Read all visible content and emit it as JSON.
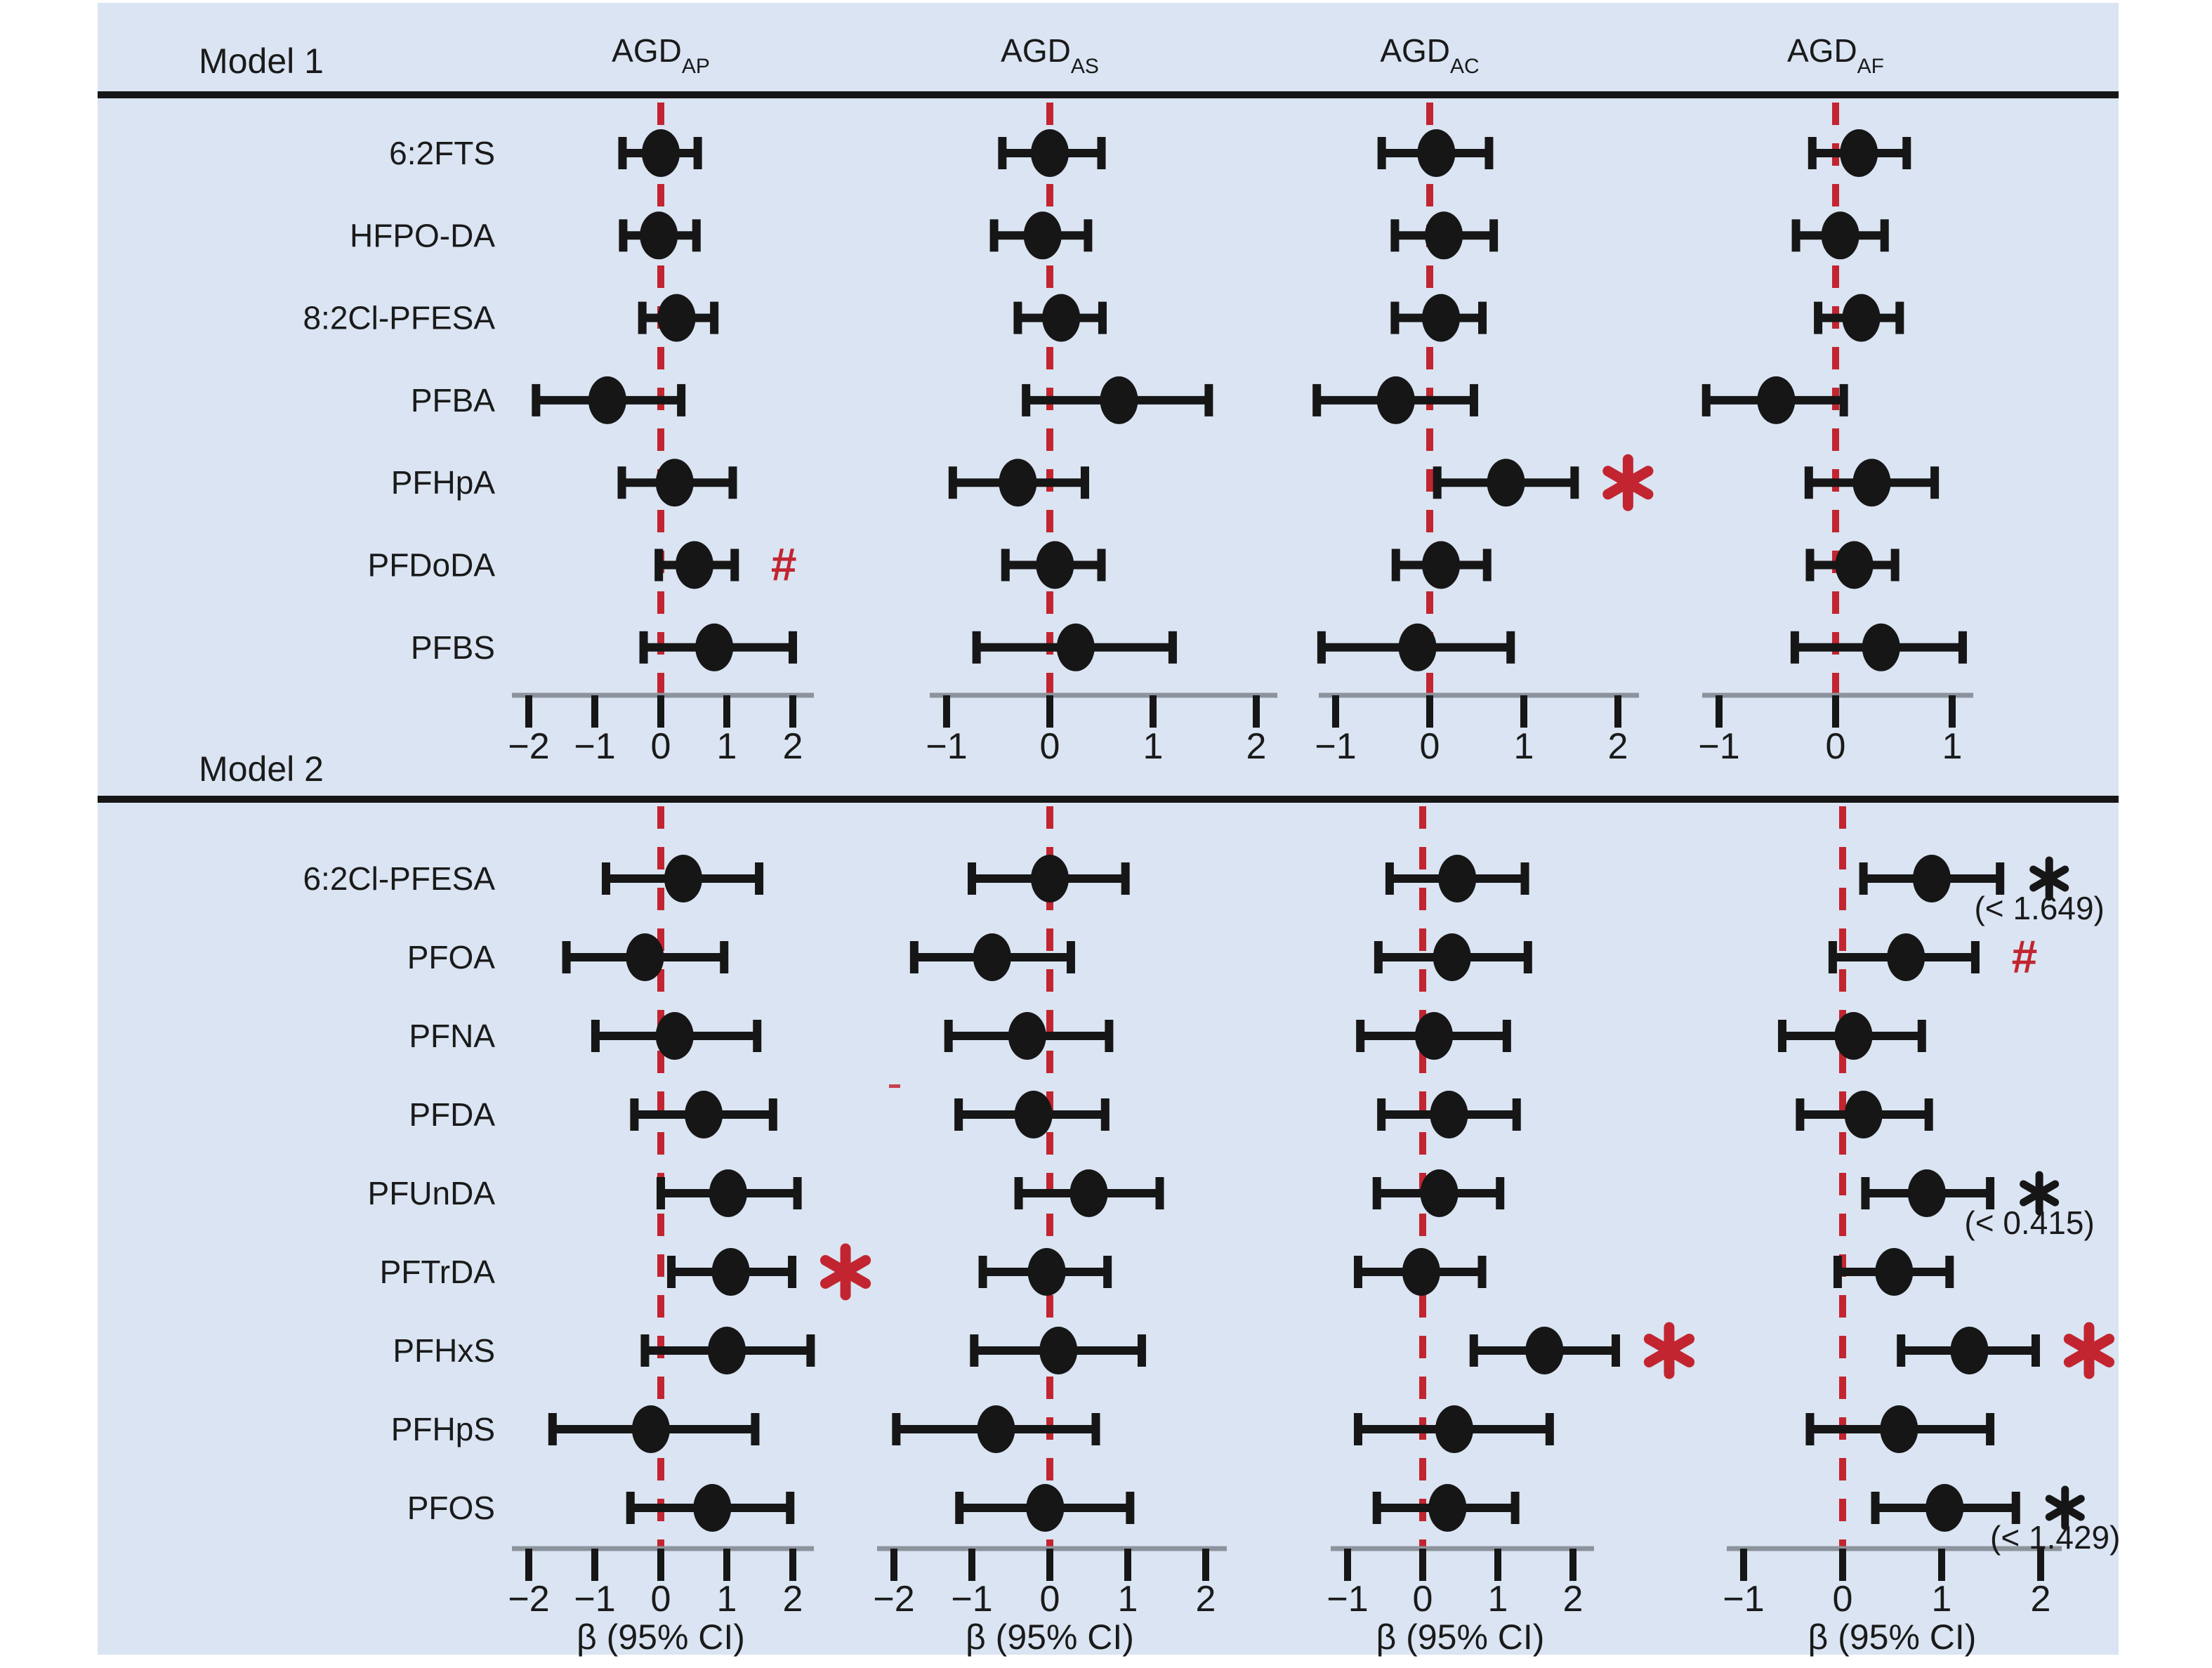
{
  "figure": {
    "panel_bg": "#dae4f2",
    "page_bg": "#ffffff",
    "black": "#161616",
    "text_color": "#1a1a1a",
    "accent_red": "#c22530",
    "axis_gray": "#8c939c"
  },
  "chart_data": {
    "type": "forest",
    "title": "",
    "xlabel": "β (95% CI)",
    "reference_line": 0,
    "grid": "off",
    "legend": "none",
    "columns": [
      {
        "id": "AGD_AP",
        "label": "AGD",
        "sub": "AP"
      },
      {
        "id": "AGD_AS",
        "label": "AGD",
        "sub": "AS"
      },
      {
        "id": "AGD_AC",
        "label": "AGD",
        "sub": "AC"
      },
      {
        "id": "AGD_AF",
        "label": "AGD",
        "sub": "AF"
      }
    ],
    "models": [
      {
        "label": "Model 1",
        "show_xlabel": false,
        "axes": [
          [
            -2,
            -1,
            0,
            1,
            2
          ],
          [
            -1,
            0,
            1,
            2
          ],
          [
            -1,
            0,
            1,
            2
          ],
          [
            -1,
            0,
            1
          ]
        ],
        "rows": [
          {
            "name": "6:2FTS",
            "est": [
              {
                "beta": 0.0,
                "lo": -0.58,
                "hi": 0.56,
                "mark": null,
                "note": null
              },
              {
                "beta": 0.0,
                "lo": -0.46,
                "hi": 0.5,
                "mark": null,
                "note": null
              },
              {
                "beta": 0.07,
                "lo": -0.51,
                "hi": 0.63,
                "mark": null,
                "note": null
              },
              {
                "beta": 0.2,
                "lo": -0.2,
                "hi": 0.61,
                "mark": null,
                "note": null
              }
            ]
          },
          {
            "name": "HFPO-DA",
            "est": [
              {
                "beta": -0.03,
                "lo": -0.57,
                "hi": 0.54,
                "mark": null,
                "note": null
              },
              {
                "beta": -0.07,
                "lo": -0.54,
                "hi": 0.37,
                "mark": null,
                "note": null
              },
              {
                "beta": 0.15,
                "lo": -0.37,
                "hi": 0.68,
                "mark": null,
                "note": null
              },
              {
                "beta": 0.04,
                "lo": -0.34,
                "hi": 0.42,
                "mark": null,
                "note": null
              }
            ]
          },
          {
            "name": "8:2Cl-PFESA",
            "est": [
              {
                "beta": 0.24,
                "lo": -0.28,
                "hi": 0.81,
                "mark": null,
                "note": null
              },
              {
                "beta": 0.11,
                "lo": -0.31,
                "hi": 0.51,
                "mark": null,
                "note": null
              },
              {
                "beta": 0.12,
                "lo": -0.37,
                "hi": 0.56,
                "mark": null,
                "note": null
              },
              {
                "beta": 0.22,
                "lo": -0.15,
                "hi": 0.55,
                "mark": null,
                "note": null
              }
            ]
          },
          {
            "name": "PFBA",
            "est": [
              {
                "beta": -0.81,
                "lo": -1.89,
                "hi": 0.31,
                "mark": null,
                "note": null
              },
              {
                "beta": 0.67,
                "lo": -0.23,
                "hi": 1.54,
                "mark": null,
                "note": null
              },
              {
                "beta": -0.36,
                "lo": -1.2,
                "hi": 0.47,
                "mark": null,
                "note": null
              },
              {
                "beta": -0.51,
                "lo": -1.11,
                "hi": 0.07,
                "mark": null,
                "note": null
              }
            ]
          },
          {
            "name": "PFHpA",
            "est": [
              {
                "beta": 0.21,
                "lo": -0.59,
                "hi": 1.09,
                "mark": null,
                "note": null
              },
              {
                "beta": -0.31,
                "lo": -0.94,
                "hi": 0.34,
                "mark": null,
                "note": null
              },
              {
                "beta": 0.81,
                "lo": 0.08,
                "hi": 1.54,
                "mark": "red-star",
                "note": null
              },
              {
                "beta": 0.31,
                "lo": -0.23,
                "hi": 0.85,
                "mark": null,
                "note": null
              }
            ]
          },
          {
            "name": "PFDoDA",
            "est": [
              {
                "beta": 0.51,
                "lo": -0.03,
                "hi": 1.12,
                "mark": "red-hash",
                "note": null
              },
              {
                "beta": 0.05,
                "lo": -0.43,
                "hi": 0.5,
                "mark": null,
                "note": null
              },
              {
                "beta": 0.12,
                "lo": -0.36,
                "hi": 0.61,
                "mark": null,
                "note": null
              },
              {
                "beta": 0.16,
                "lo": -0.22,
                "hi": 0.51,
                "mark": null,
                "note": null
              }
            ]
          },
          {
            "name": "PFBS",
            "est": [
              {
                "beta": 0.81,
                "lo": -0.26,
                "hi": 2.0,
                "mark": null,
                "note": null
              },
              {
                "beta": 0.25,
                "lo": -0.71,
                "hi": 1.19,
                "mark": null,
                "note": null
              },
              {
                "beta": -0.13,
                "lo": -1.15,
                "hi": 0.86,
                "mark": null,
                "note": null
              },
              {
                "beta": 0.39,
                "lo": -0.35,
                "hi": 1.09,
                "mark": null,
                "note": null
              }
            ]
          }
        ]
      },
      {
        "label": "Model 2",
        "show_xlabel": true,
        "axes": [
          [
            -2,
            -1,
            0,
            1,
            2
          ],
          [
            -2,
            -1,
            0,
            1,
            2
          ],
          [
            -1,
            0,
            1,
            2
          ],
          [
            -1,
            0,
            1,
            2
          ]
        ],
        "rows": [
          {
            "name": "6:2Cl-PFESA",
            "est": [
              {
                "beta": 0.34,
                "lo": -0.83,
                "hi": 1.49,
                "mark": null,
                "note": null
              },
              {
                "beta": 0.0,
                "lo": -1.0,
                "hi": 0.97,
                "mark": null,
                "note": null
              },
              {
                "beta": 0.46,
                "lo": -0.44,
                "hi": 1.36,
                "mark": null,
                "note": null
              },
              {
                "beta": 0.9,
                "lo": 0.21,
                "hi": 1.59,
                "mark": "black-star",
                "note": "(< 1.649)"
              }
            ]
          },
          {
            "name": "PFOA",
            "est": [
              {
                "beta": -0.24,
                "lo": -1.43,
                "hi": 0.96,
                "mark": null,
                "note": null
              },
              {
                "beta": -0.74,
                "lo": -1.74,
                "hi": 0.27,
                "mark": null,
                "note": null
              },
              {
                "beta": 0.39,
                "lo": -0.59,
                "hi": 1.4,
                "mark": null,
                "note": null
              },
              {
                "beta": 0.64,
                "lo": -0.1,
                "hi": 1.34,
                "mark": "red-hash",
                "note": null
              }
            ]
          },
          {
            "name": "PFNA",
            "est": [
              {
                "beta": 0.21,
                "lo": -0.99,
                "hi": 1.46,
                "mark": null,
                "note": null
              },
              {
                "beta": -0.29,
                "lo": -1.3,
                "hi": 0.76,
                "mark": null,
                "note": null
              },
              {
                "beta": 0.15,
                "lo": -0.83,
                "hi": 1.12,
                "mark": null,
                "note": null
              },
              {
                "beta": 0.11,
                "lo": -0.61,
                "hi": 0.8,
                "mark": null,
                "note": null
              }
            ]
          },
          {
            "name": "PFDA",
            "est": [
              {
                "beta": 0.65,
                "lo": -0.4,
                "hi": 1.7,
                "mark": null,
                "note": null
              },
              {
                "beta": -0.21,
                "lo": -1.17,
                "hi": 0.71,
                "mark": null,
                "note": null
              },
              {
                "beta": 0.35,
                "lo": -0.55,
                "hi": 1.25,
                "mark": null,
                "note": null
              },
              {
                "beta": 0.21,
                "lo": -0.43,
                "hi": 0.87,
                "mark": null,
                "note": null
              }
            ]
          },
          {
            "name": "PFUnDA",
            "est": [
              {
                "beta": 1.02,
                "lo": 0.0,
                "hi": 2.07,
                "mark": null,
                "note": null
              },
              {
                "beta": 0.5,
                "lo": -0.4,
                "hi": 1.41,
                "mark": null,
                "note": null
              },
              {
                "beta": 0.22,
                "lo": -0.61,
                "hi": 1.03,
                "mark": null,
                "note": null
              },
              {
                "beta": 0.85,
                "lo": 0.23,
                "hi": 1.49,
                "mark": "black-star",
                "note": "(< 0.415)"
              }
            ]
          },
          {
            "name": "PFTrDA",
            "est": [
              {
                "beta": 1.06,
                "lo": 0.16,
                "hi": 1.99,
                "mark": "red-star",
                "note": null
              },
              {
                "beta": -0.04,
                "lo": -0.86,
                "hi": 0.74,
                "mark": null,
                "note": null
              },
              {
                "beta": -0.02,
                "lo": -0.86,
                "hi": 0.79,
                "mark": null,
                "note": null
              },
              {
                "beta": 0.52,
                "lo": -0.05,
                "hi": 1.08,
                "mark": null,
                "note": null
              }
            ]
          },
          {
            "name": "PFHxS",
            "est": [
              {
                "beta": 1.0,
                "lo": -0.24,
                "hi": 2.27,
                "mark": null,
                "note": null
              },
              {
                "beta": 0.11,
                "lo": -0.97,
                "hi": 1.18,
                "mark": null,
                "note": null
              },
              {
                "beta": 1.62,
                "lo": 0.68,
                "hi": 2.57,
                "mark": "red-star",
                "note": null
              },
              {
                "beta": 1.28,
                "lo": 0.59,
                "hi": 1.95,
                "mark": "red-star",
                "note": null
              }
            ]
          },
          {
            "name": "PFHpS",
            "est": [
              {
                "beta": -0.15,
                "lo": -1.64,
                "hi": 1.43,
                "mark": null,
                "note": null
              },
              {
                "beta": -0.69,
                "lo": -1.97,
                "hi": 0.59,
                "mark": null,
                "note": null
              },
              {
                "beta": 0.42,
                "lo": -0.86,
                "hi": 1.69,
                "mark": null,
                "note": null
              },
              {
                "beta": 0.57,
                "lo": -0.33,
                "hi": 1.49,
                "mark": null,
                "note": null
              }
            ]
          },
          {
            "name": "PFOS",
            "est": [
              {
                "beta": 0.78,
                "lo": -0.46,
                "hi": 1.96,
                "mark": null,
                "note": null
              },
              {
                "beta": -0.06,
                "lo": -1.16,
                "hi": 1.03,
                "mark": null,
                "note": null
              },
              {
                "beta": 0.33,
                "lo": -0.61,
                "hi": 1.23,
                "mark": null,
                "note": null
              },
              {
                "beta": 1.03,
                "lo": 0.33,
                "hi": 1.75,
                "mark": "black-star",
                "note": "(< 1.429)"
              }
            ]
          }
        ]
      }
    ]
  }
}
